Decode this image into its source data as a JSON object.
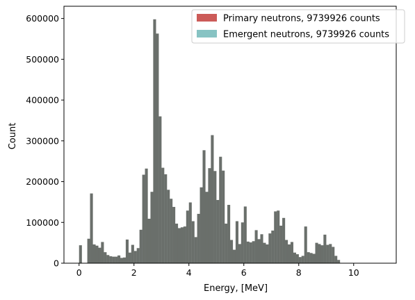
{
  "chart_data": {
    "type": "bar",
    "title": "",
    "xlabel": "Energy, [MeV]",
    "ylabel": "Count",
    "xlim": [
      -0.55,
      11.55
    ],
    "ylim": [
      0,
      630000
    ],
    "xticks": [
      "0",
      "2",
      "4",
      "6",
      "8",
      "10"
    ],
    "yticks": [
      "0",
      "100000",
      "200000",
      "300000",
      "400000",
      "500000",
      "600000"
    ],
    "grid": false,
    "legend_position": "top-right",
    "bin_start": 0.0,
    "bin_width": 0.1,
    "series": [
      {
        "name": "Primary neutrons, 9739926 counts",
        "color": "#cc5b58"
      },
      {
        "name": "Emergent neutrons, 9739926 counts",
        "color": "#87c3c3"
      }
    ],
    "overlap_color": "#6a6f6b",
    "values": [
      44000,
      0,
      0,
      60000,
      171000,
      46000,
      43000,
      38000,
      52000,
      27000,
      20000,
      17000,
      16000,
      16000,
      19000,
      13000,
      14000,
      58000,
      26000,
      45000,
      30000,
      37000,
      82000,
      217000,
      232000,
      109000,
      175000,
      598000,
      563000,
      360000,
      234000,
      218000,
      180000,
      158000,
      138000,
      97000,
      86000,
      88000,
      90000,
      129000,
      149000,
      103000,
      64000,
      121000,
      186000,
      277000,
      175000,
      233000,
      314000,
      226000,
      155000,
      261000,
      227000,
      97000,
      143000,
      57000,
      33000,
      103000,
      47000,
      100000,
      139000,
      53000,
      51000,
      54000,
      81000,
      59000,
      71000,
      50000,
      46000,
      73000,
      80000,
      127000,
      129000,
      92000,
      111000,
      57000,
      46000,
      52000,
      26000,
      22000,
      15000,
      18000,
      90000,
      27000,
      25000,
      23000,
      50000,
      47000,
      44000,
      70000,
      45000,
      47000,
      40000,
      18000,
      8000
    ]
  }
}
